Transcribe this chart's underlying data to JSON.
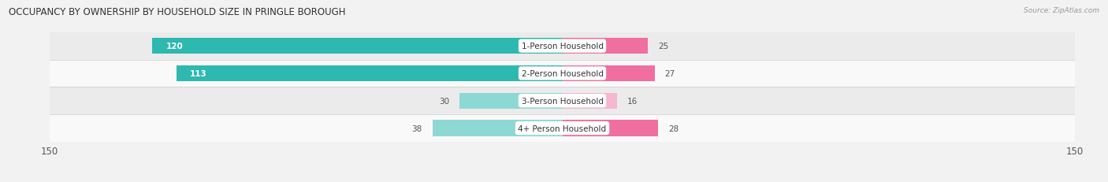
{
  "title": "OCCUPANCY BY OWNERSHIP BY HOUSEHOLD SIZE IN PRINGLE BOROUGH",
  "source": "Source: ZipAtlas.com",
  "categories": [
    "1-Person Household",
    "2-Person Household",
    "3-Person Household",
    "4+ Person Household"
  ],
  "owner_values": [
    120,
    113,
    30,
    38
  ],
  "renter_values": [
    25,
    27,
    16,
    28
  ],
  "owner_color_dark": "#2DB8B0",
  "owner_color_light": "#8ED8D4",
  "renter_color_dark": "#F06EA0",
  "renter_color_light": "#F5B8D0",
  "owner_dark_threshold": 50,
  "renter_dark_threshold": 20,
  "axis_max": 150,
  "bar_height": 0.58,
  "bg_color": "#f2f2f2",
  "row_colors": [
    "#f9f9f9",
    "#ebebeb",
    "#f9f9f9",
    "#ebebeb"
  ],
  "label_fontsize": 7.5,
  "title_fontsize": 8.5,
  "value_fontsize": 7.5,
  "axis_fontsize": 8.5,
  "source_fontsize": 6.5
}
